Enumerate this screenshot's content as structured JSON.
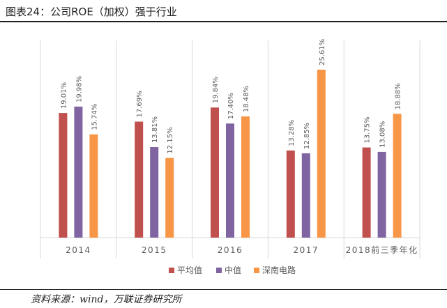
{
  "figure_title": "图表24：公司ROE（加权）强于行业",
  "source": "资料来源：wind，万联证券研究所",
  "colors": {
    "平均值": "#c0504d",
    "中值": "#8064a2",
    "深南电路": "#f79646"
  },
  "chart_data": {
    "type": "bar",
    "title": "",
    "categories": [
      "2014",
      "2015",
      "2016",
      "2017",
      "2018前三季年化"
    ],
    "series": [
      {
        "name": "平均值",
        "values": [
          19.01,
          17.69,
          19.84,
          13.28,
          13.75
        ],
        "labels": [
          "19.01%",
          "17.69%",
          "19.84%",
          "13.28%",
          "13.75%"
        ]
      },
      {
        "name": "中值",
        "values": [
          19.98,
          13.81,
          17.4,
          12.85,
          13.08
        ],
        "labels": [
          "19.98%",
          "13.81%",
          "17.40%",
          "12.85%",
          "13.08%"
        ]
      },
      {
        "name": "深南电路",
        "values": [
          15.74,
          12.15,
          18.48,
          25.61,
          18.88
        ],
        "labels": [
          "15.74%",
          "12.15%",
          "18.48%",
          "25.61%",
          "18.88%"
        ]
      }
    ],
    "ylim": [
      0,
      30
    ],
    "xlabel": "",
    "ylabel": "",
    "grid": false,
    "legend": "bottom"
  }
}
